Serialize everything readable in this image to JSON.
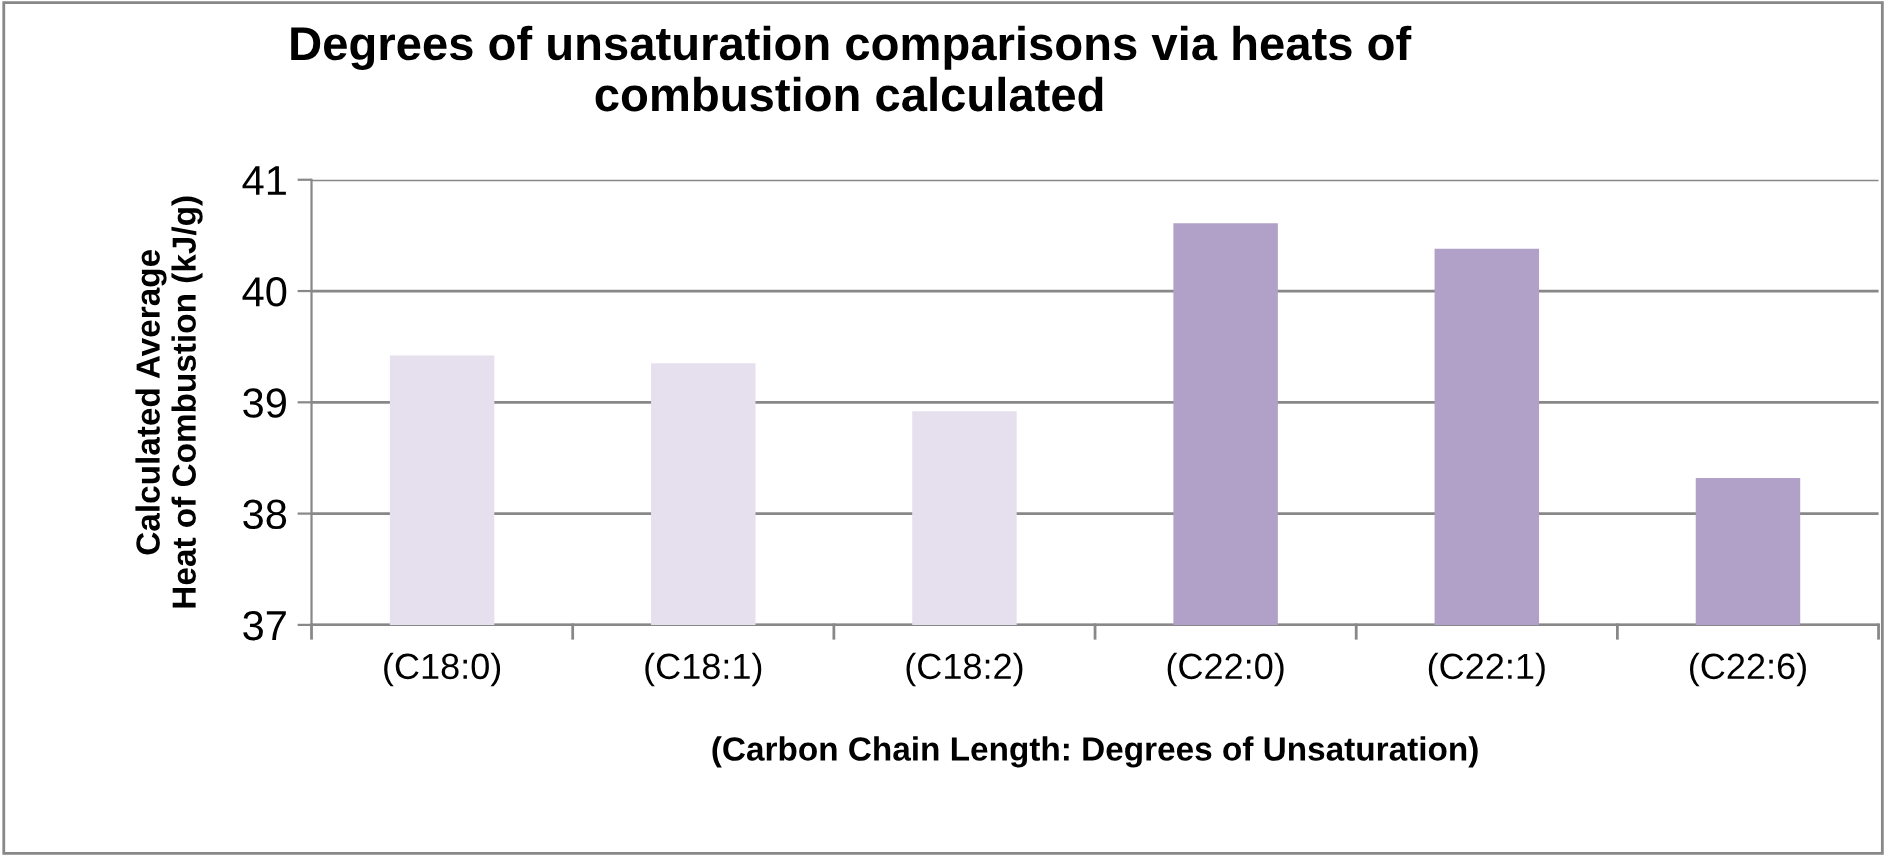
{
  "chart_data": {
    "type": "bar",
    "title": "Degrees of unsaturation comparisons via heats of\ncombustion calculated",
    "xlabel": "(Carbon Chain Length: Degrees of Unsaturation)",
    "ylabel": "Calculated Average\nHeat of Combustion (kJ/g)",
    "categories": [
      "(C18:0)",
      "(C18:1)",
      "(C18:2)",
      "(C22:0)",
      "(C22:1)",
      "(C22:6)"
    ],
    "values": [
      39.42,
      39.35,
      38.92,
      40.61,
      40.38,
      38.32
    ],
    "colors": [
      "#e6e0ee",
      "#e6e0ee",
      "#e6e0ee",
      "#b1a0c7",
      "#b1a0c7",
      "#b1a0c7"
    ],
    "ylim": [
      37,
      41
    ],
    "yticks": [
      37,
      38,
      39,
      40,
      41
    ],
    "grid": "y",
    "legend": false
  }
}
